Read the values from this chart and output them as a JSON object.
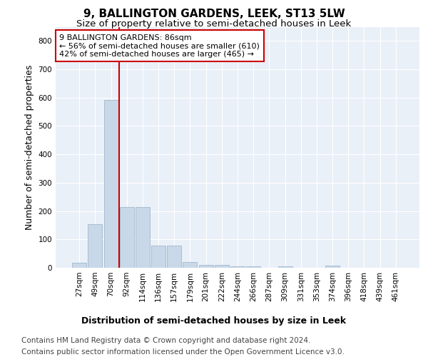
{
  "title": "9, BALLINGTON GARDENS, LEEK, ST13 5LW",
  "subtitle": "Size of property relative to semi-detached houses in Leek",
  "xlabel": "Distribution of semi-detached houses by size in Leek",
  "ylabel": "Number of semi-detached properties",
  "categories": [
    "27sqm",
    "49sqm",
    "70sqm",
    "92sqm",
    "114sqm",
    "136sqm",
    "157sqm",
    "179sqm",
    "201sqm",
    "222sqm",
    "244sqm",
    "266sqm",
    "287sqm",
    "309sqm",
    "331sqm",
    "353sqm",
    "374sqm",
    "396sqm",
    "418sqm",
    "439sqm",
    "461sqm"
  ],
  "values": [
    18,
    153,
    593,
    215,
    215,
    78,
    78,
    20,
    10,
    10,
    5,
    5,
    0,
    5,
    0,
    0,
    8,
    0,
    0,
    0,
    0
  ],
  "bar_color": "#c8d8e8",
  "bar_edgecolor": "#a0b8cc",
  "vline_color": "#cc0000",
  "annotation_text": "9 BALLINGTON GARDENS: 86sqm\n← 56% of semi-detached houses are smaller (610)\n42% of semi-detached houses are larger (465) →",
  "annotation_box_color": "#ffffff",
  "annotation_box_edgecolor": "#cc0000",
  "ylim": [
    0,
    850
  ],
  "yticks": [
    0,
    100,
    200,
    300,
    400,
    500,
    600,
    700,
    800
  ],
  "footer1": "Contains HM Land Registry data © Crown copyright and database right 2024.",
  "footer2": "Contains public sector information licensed under the Open Government Licence v3.0.",
  "plot_bg_color": "#eaf0f8",
  "title_fontsize": 11,
  "subtitle_fontsize": 9.5,
  "axis_label_fontsize": 9,
  "tick_fontsize": 7.5,
  "footer_fontsize": 7.5,
  "annotation_fontsize": 8
}
